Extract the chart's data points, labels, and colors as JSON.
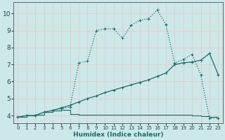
{
  "xlabel": "Humidex (Indice chaleur)",
  "x_ticks": [
    0,
    1,
    2,
    3,
    4,
    5,
    6,
    7,
    8,
    9,
    10,
    11,
    12,
    13,
    14,
    15,
    16,
    17,
    18,
    19,
    20,
    21,
    22,
    23
  ],
  "y_ticks": [
    4,
    5,
    6,
    7,
    8,
    9,
    10
  ],
  "ylim": [
    3.55,
    10.65
  ],
  "xlim": [
    -0.5,
    23.5
  ],
  "bg_color": "#cce8e8",
  "grid_color": "#b8d8d8",
  "line_color": "#1a6e6a",
  "curve1_x": [
    0,
    1,
    2,
    3,
    4,
    5,
    6,
    7,
    8,
    9,
    10,
    11,
    12,
    13,
    14,
    15,
    16,
    17,
    18,
    19,
    20,
    21,
    22,
    23
  ],
  "curve1_y": [
    3.9,
    4.0,
    4.0,
    4.2,
    4.3,
    4.4,
    4.5,
    7.1,
    7.2,
    9.0,
    9.1,
    9.1,
    8.55,
    9.3,
    9.6,
    9.7,
    10.2,
    9.35,
    7.1,
    7.3,
    7.6,
    6.4,
    3.85,
    3.85
  ],
  "curve2_x": [
    0,
    1,
    2,
    3,
    4,
    5,
    6,
    7,
    8,
    9,
    10,
    11,
    12,
    13,
    14,
    15,
    16,
    17,
    18,
    19,
    20,
    21,
    22,
    23
  ],
  "curve2_y": [
    3.9,
    4.0,
    4.0,
    4.2,
    4.3,
    4.45,
    4.6,
    4.8,
    5.0,
    5.15,
    5.35,
    5.5,
    5.65,
    5.8,
    5.95,
    6.1,
    6.3,
    6.5,
    7.0,
    7.1,
    7.15,
    7.25,
    7.65,
    6.4
  ],
  "curve3_step_x": [
    0,
    1,
    2,
    3,
    4,
    5,
    6,
    7,
    8,
    9,
    10,
    11,
    12,
    13,
    14,
    15,
    16,
    17,
    18,
    19,
    20,
    21,
    22,
    23
  ],
  "curve3_step_y": [
    3.9,
    4.0,
    4.05,
    4.2,
    4.3,
    4.35,
    4.1,
    4.05,
    4.05,
    4.05,
    4.05,
    4.05,
    4.05,
    4.05,
    4.05,
    4.05,
    4.05,
    4.05,
    4.05,
    4.05,
    4.0,
    3.95,
    3.9,
    3.8
  ]
}
